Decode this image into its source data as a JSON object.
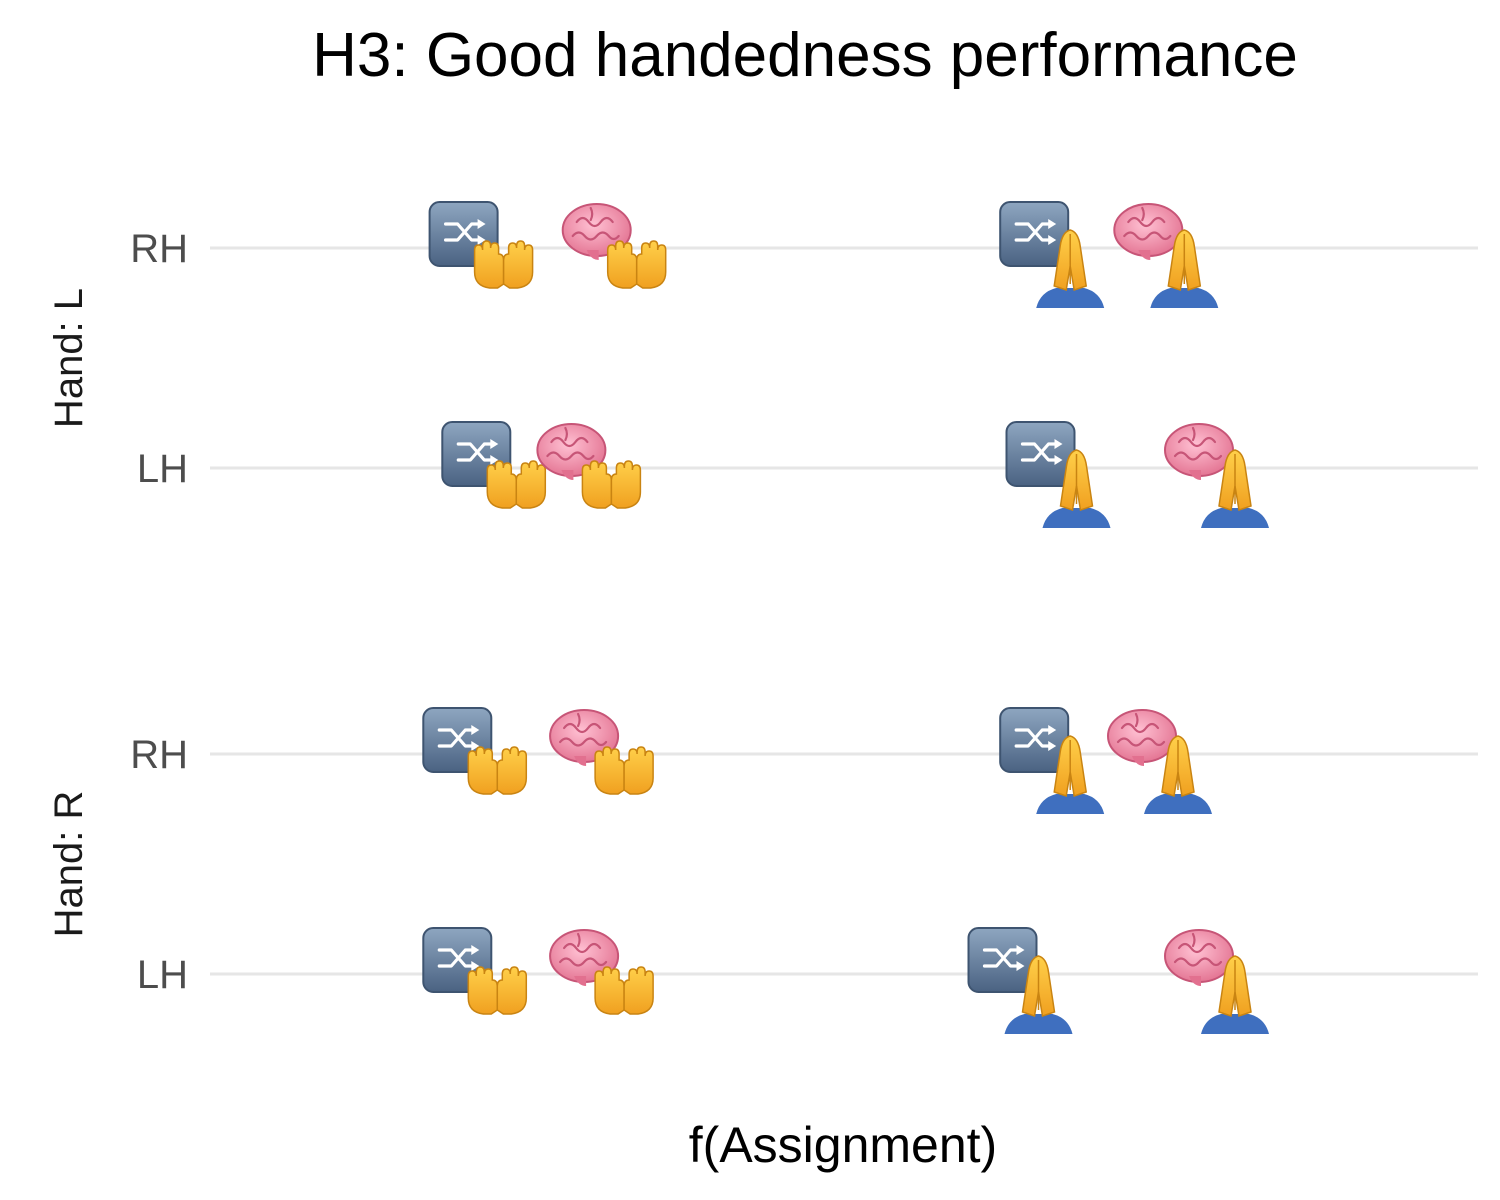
{
  "chart_data": {
    "type": "scatter",
    "title": "H3: Good handedness performance",
    "xlabel": "f(Assignment)",
    "ylabel": "",
    "xlim": [
      0,
      10
    ],
    "facets": [
      {
        "label": "Hand: L",
        "rows": [
          "RH",
          "LH"
        ]
      },
      {
        "label": "Hand: R",
        "rows": [
          "RH",
          "LH"
        ]
      }
    ],
    "marker_legend": {
      "shuffle-icon": "random assignment",
      "brain-icon": "selected assignment",
      "open-hands-icon": "hands condition 1",
      "praying-hands-icon": "hands condition 2"
    },
    "points": [
      {
        "facet": 0,
        "row": "RH",
        "marker": "shuffle-icon",
        "hand": "open-hands-icon",
        "x": 2.0
      },
      {
        "facet": 0,
        "row": "RH",
        "marker": "brain-icon",
        "hand": "open-hands-icon",
        "x": 3.05
      },
      {
        "facet": 0,
        "row": "RH",
        "marker": "shuffle-icon",
        "hand": "praying-hands-icon",
        "x": 6.5
      },
      {
        "facet": 0,
        "row": "RH",
        "marker": "brain-icon",
        "hand": "praying-hands-icon",
        "x": 7.4
      },
      {
        "facet": 0,
        "row": "LH",
        "marker": "shuffle-icon",
        "hand": "open-hands-icon",
        "x": 2.1
      },
      {
        "facet": 0,
        "row": "LH",
        "marker": "brain-icon",
        "hand": "open-hands-icon",
        "x": 2.85
      },
      {
        "facet": 0,
        "row": "LH",
        "marker": "shuffle-icon",
        "hand": "praying-hands-icon",
        "x": 6.55
      },
      {
        "facet": 0,
        "row": "LH",
        "marker": "brain-icon",
        "hand": "praying-hands-icon",
        "x": 7.8
      },
      {
        "facet": 1,
        "row": "RH",
        "marker": "shuffle-icon",
        "hand": "open-hands-icon",
        "x": 1.95
      },
      {
        "facet": 1,
        "row": "RH",
        "marker": "brain-icon",
        "hand": "open-hands-icon",
        "x": 2.95
      },
      {
        "facet": 1,
        "row": "RH",
        "marker": "shuffle-icon",
        "hand": "praying-hands-icon",
        "x": 6.5
      },
      {
        "facet": 1,
        "row": "RH",
        "marker": "brain-icon",
        "hand": "praying-hands-icon",
        "x": 7.35
      },
      {
        "facet": 1,
        "row": "LH",
        "marker": "shuffle-icon",
        "hand": "open-hands-icon",
        "x": 1.95
      },
      {
        "facet": 1,
        "row": "LH",
        "marker": "brain-icon",
        "hand": "open-hands-icon",
        "x": 2.95
      },
      {
        "facet": 1,
        "row": "LH",
        "marker": "shuffle-icon",
        "hand": "praying-hands-icon",
        "x": 6.25
      },
      {
        "facet": 1,
        "row": "LH",
        "marker": "brain-icon",
        "hand": "praying-hands-icon",
        "x": 7.8
      }
    ]
  }
}
